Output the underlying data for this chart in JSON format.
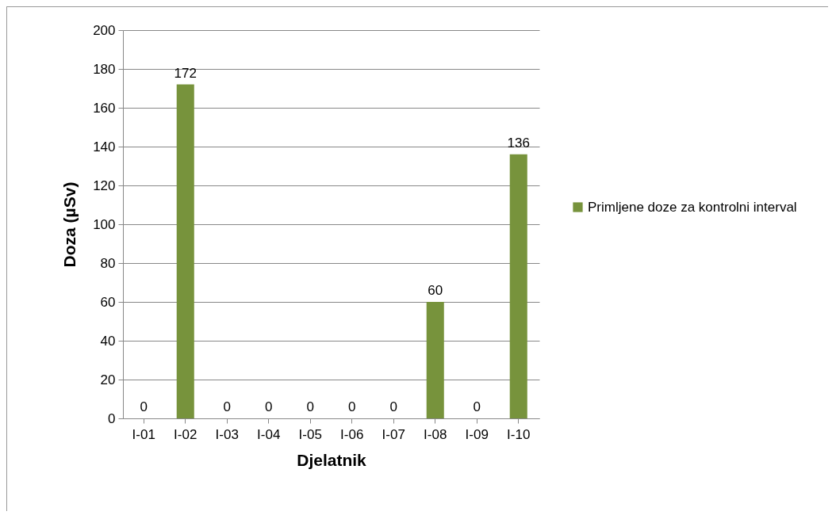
{
  "chart_data": {
    "type": "bar",
    "xlabel": "Djelatnik",
    "ylabel": "Doza (µSv)",
    "categories": [
      "I-01",
      "I-02",
      "I-03",
      "I-04",
      "I-05",
      "I-06",
      "I-07",
      "I-08",
      "I-09",
      "I-10"
    ],
    "series": [
      {
        "name": "Primljene doze za kontrolni interval",
        "color": "#77933c",
        "values": [
          0,
          172,
          0,
          0,
          0,
          0,
          0,
          60,
          0,
          136
        ]
      }
    ],
    "ylim": [
      0,
      200
    ],
    "yticks": [
      0,
      20,
      40,
      60,
      80,
      100,
      120,
      140,
      160,
      180,
      200
    ],
    "grid": "y",
    "legend": "right",
    "data_labels": true
  }
}
